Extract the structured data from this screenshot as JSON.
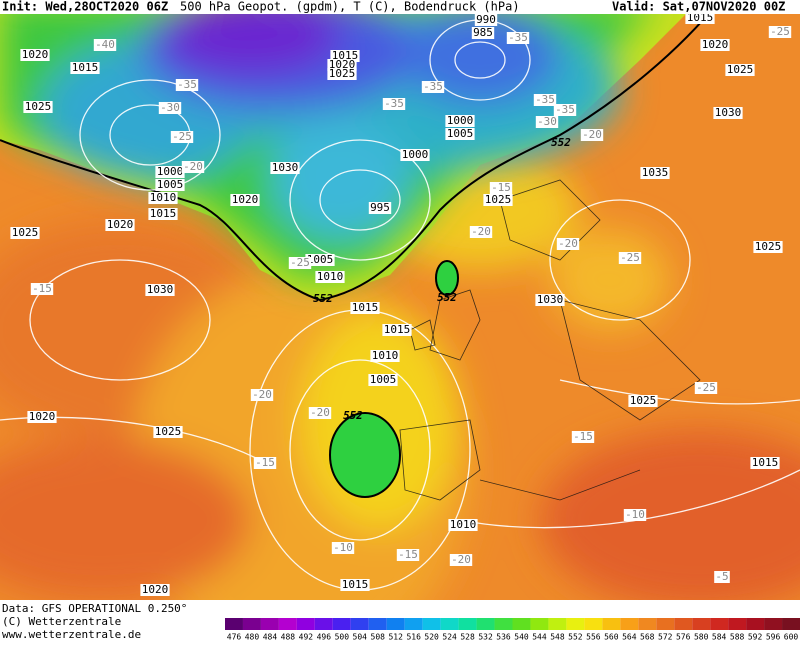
{
  "header": {
    "init": "Init: Wed,28OCT2020 06Z",
    "title": "500 hPa Geopot. (gpdm), T (C), Bodendruck (hPa)",
    "valid": "Valid: Sat,07NOV2020 00Z"
  },
  "footer": {
    "data": "Data: GFS OPERATIONAL 0.250°",
    "copyright": "(C) Wetterzentrale",
    "url": "www.wetterzentrale.de"
  },
  "color_scale": [
    476,
    480,
    484,
    488,
    492,
    496,
    500,
    504,
    508,
    512,
    516,
    520,
    524,
    528,
    532,
    536,
    540,
    544,
    548,
    552,
    556,
    560,
    564,
    568,
    572,
    576,
    580,
    584,
    588,
    592,
    596,
    600
  ],
  "isobar_labels": [
    "1020",
    "1015",
    "1025",
    "1000",
    "1005",
    "1010",
    "1015",
    "1020",
    "1025",
    "1030",
    "1030",
    "1020",
    "995",
    "1000",
    "1000",
    "1005",
    "1015",
    "1020",
    "1025",
    "990",
    "985",
    "1015",
    "1020",
    "1025",
    "1030",
    "1035",
    "1025",
    "1025",
    "1030",
    "1015",
    "1015",
    "1010",
    "1005",
    "1005",
    "1010",
    "1020",
    "1025",
    "1025",
    "1015",
    "1010",
    "1015",
    "1020"
  ],
  "temperature_labels": [
    "-40",
    "-35",
    "-30",
    "-25",
    "-20",
    "-35",
    "-35",
    "-35",
    "-35",
    "-35",
    "-30",
    "-20",
    "-25",
    "-15",
    "-20",
    "-20",
    "-25",
    "-25",
    "-20",
    "-20",
    "-15",
    "-15",
    "-25",
    "-15",
    "-10",
    "-10",
    "-20",
    "-15",
    "-5"
  ],
  "contour_552_labels": [
    "552",
    "552",
    "552",
    "552"
  ]
}
